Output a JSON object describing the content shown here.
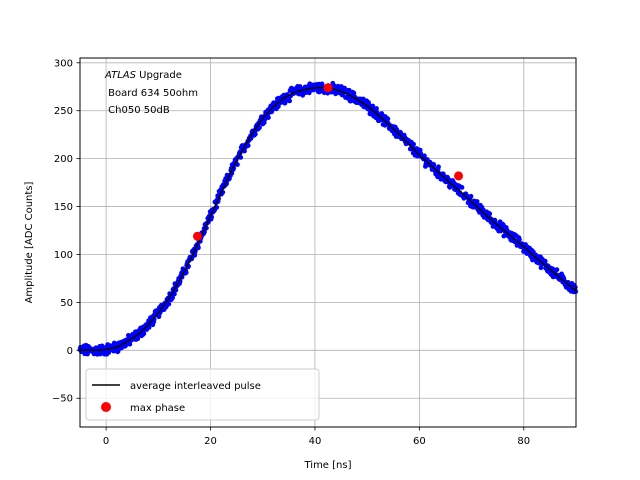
{
  "chart_data": {
    "type": "scatter",
    "xlabel": "Time [ns]",
    "ylabel": "Amplitude [ADC Counts]",
    "xlim": [
      -5,
      90
    ],
    "ylim": [
      -80,
      305
    ],
    "xticks": [
      0,
      20,
      40,
      60,
      80
    ],
    "yticks": [
      -50,
      0,
      50,
      100,
      150,
      200,
      250,
      300
    ],
    "grid": true,
    "legend_position": "lower-left",
    "annotation": {
      "line1_italic": "ATLAS",
      "line1_rest": " Upgrade",
      "line2": " Board 634 50ohm",
      "line3": " Ch050 50dB"
    },
    "series": [
      {
        "name": "average interleaved pulse",
        "kind": "line",
        "color": "#000000",
        "x": [
          -5,
          -3,
          -1,
          0,
          2,
          4,
          6,
          8,
          10,
          12,
          14,
          16,
          18,
          20,
          22,
          24,
          26,
          28,
          30,
          32,
          34,
          36,
          38,
          40,
          42,
          44,
          46,
          48,
          50,
          52,
          54,
          56,
          58,
          60,
          62,
          64,
          66,
          68,
          70,
          72,
          74,
          76,
          78,
          80,
          82,
          84,
          86,
          88,
          90
        ],
        "y": [
          0,
          0,
          0,
          1,
          3,
          9,
          16,
          26,
          39,
          54,
          72,
          93,
          116,
          140,
          164,
          187,
          208,
          226,
          242,
          254,
          263,
          269,
          272,
          274,
          274,
          272,
          268,
          262,
          255,
          246,
          236,
          226,
          215,
          204,
          194,
          184,
          174,
          165,
          155,
          145,
          135,
          126,
          117,
          108,
          98,
          89,
          80,
          71,
          62
        ]
      },
      {
        "name": "",
        "kind": "scatter",
        "color": "#0000ff",
        "description_of_points": "dense interleaved ADC samples scattered around the average pulse"
      },
      {
        "name": "max phase",
        "kind": "points",
        "color": "#ff0000",
        "x": [
          17.5,
          42.5,
          67.5
        ],
        "y": [
          119,
          274,
          182
        ]
      }
    ]
  }
}
